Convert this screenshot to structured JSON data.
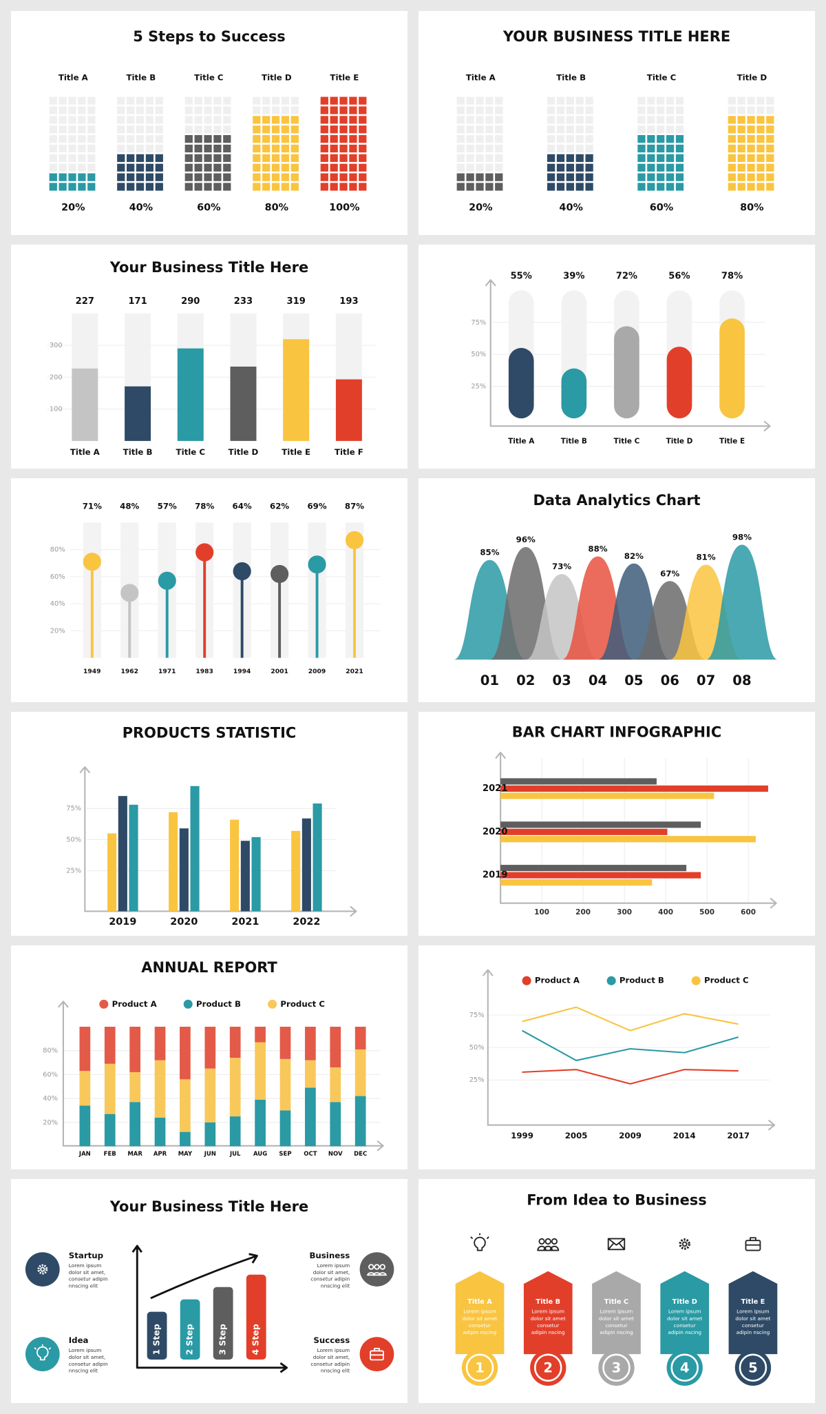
{
  "chart_data": [
    {
      "type": "waffle",
      "title": "5 Steps to Success",
      "categories": [
        "Title A",
        "Title B",
        "Title C",
        "Title D",
        "Title E"
      ],
      "values": [
        20,
        40,
        60,
        80,
        100
      ],
      "value_labels": [
        "20%",
        "40%",
        "60%",
        "80%",
        "100%"
      ],
      "colors": [
        "#2a9aa5",
        "#2e4a66",
        "#5e5e5e",
        "#f9c440",
        "#e23f2a"
      ],
      "ylim": [
        0,
        100
      ]
    },
    {
      "type": "waffle",
      "title": "YOUR BUSINESS TITLE HERE",
      "categories": [
        "Title A",
        "Title B",
        "Title C",
        "Title D"
      ],
      "values": [
        20,
        40,
        60,
        80
      ],
      "value_labels": [
        "20%",
        "40%",
        "60%",
        "80%"
      ],
      "colors": [
        "#5e5e5e",
        "#2e4a66",
        "#2a9aa5",
        "#f9c440"
      ],
      "ylim": [
        0,
        100
      ]
    },
    {
      "type": "bar",
      "title": "Your Business Title Here",
      "categories": [
        "Title A",
        "Title B",
        "Title C",
        "Title D",
        "Title E",
        "Title F"
      ],
      "values": [
        227,
        171,
        290,
        233,
        319,
        193
      ],
      "colors": [
        "#c4c4c4",
        "#2e4a66",
        "#2a9aa5",
        "#5e5e5e",
        "#f9c440",
        "#e23f2a"
      ],
      "ylim": [
        0,
        400
      ],
      "yticks": [
        100,
        200,
        300
      ],
      "grid": true
    },
    {
      "type": "pill",
      "categories": [
        "Title A",
        "Title B",
        "Title C",
        "Title D",
        "Title E"
      ],
      "values": [
        55,
        39,
        72,
        56,
        78
      ],
      "value_labels": [
        "55%",
        "39%",
        "72%",
        "56%",
        "78%"
      ],
      "colors": [
        "#2e4a66",
        "#2a9aa5",
        "#a9a9a9",
        "#e23f2a",
        "#f9c440"
      ],
      "ylim": [
        0,
        100
      ],
      "yticks": [
        {
          "value": 25,
          "label": "25%"
        },
        {
          "value": 50,
          "label": "50%"
        },
        {
          "value": 75,
          "label": "75%"
        }
      ],
      "grid": true
    },
    {
      "type": "lollipop",
      "categories": [
        "1949",
        "1962",
        "1971",
        "1983",
        "1994",
        "2001",
        "2009",
        "2021"
      ],
      "values": [
        71,
        48,
        57,
        78,
        64,
        62,
        69,
        87
      ],
      "value_labels": [
        "71%",
        "48%",
        "57%",
        "78%",
        "64%",
        "62%",
        "69%",
        "87%"
      ],
      "colors": [
        "#f9c440",
        "#c4c4c4",
        "#2a9aa5",
        "#e23f2a",
        "#2e4a66",
        "#5e5e5e",
        "#2a9aa5",
        "#f9c440"
      ],
      "ylim": [
        0,
        100
      ],
      "yticks": [
        {
          "value": 20,
          "label": "20%"
        },
        {
          "value": 40,
          "label": "40%"
        },
        {
          "value": 60,
          "label": "60%"
        },
        {
          "value": 80,
          "label": "80%"
        }
      ],
      "grid": true
    },
    {
      "type": "bell",
      "title": "Data Analytics Chart",
      "categories": [
        "01",
        "02",
        "03",
        "04",
        "05",
        "06",
        "07",
        "08"
      ],
      "values": [
        85,
        96,
        73,
        88,
        82,
        67,
        81,
        98
      ],
      "value_labels": [
        "85%",
        "96%",
        "73%",
        "88%",
        "82%",
        "67%",
        "81%",
        "98%"
      ],
      "colors": [
        "#2a9aa5",
        "#6b6b6b",
        "#c4c4c4",
        "#e8523f",
        "#3e5d7a",
        "#6b6b6b",
        "#f9c440",
        "#2a9aa5"
      ],
      "ylim": [
        0,
        100
      ]
    },
    {
      "type": "grouped-bar",
      "title": "PRODUCTS STATISTIC",
      "categories": [
        "2019",
        "2020",
        "2021",
        "2022"
      ],
      "series": [
        {
          "color": "#f9c440",
          "values": [
            55,
            72,
            66,
            57
          ]
        },
        {
          "color": "#2e4a66",
          "values": [
            85,
            59,
            49,
            67
          ]
        },
        {
          "color": "#2a9aa5",
          "values": [
            78,
            93,
            52,
            79
          ]
        }
      ],
      "ylim": [
        0,
        100
      ],
      "yticks": [
        {
          "value": 25,
          "label": "25%"
        },
        {
          "value": 50,
          "label": "50%"
        },
        {
          "value": 75,
          "label": "75%"
        }
      ],
      "grid": true
    },
    {
      "type": "horizontal-grouped-bar",
      "title": "BAR CHART INFOGRAPHIC",
      "categories": [
        "2021",
        "2020",
        "2019"
      ],
      "series": [
        {
          "color": "#5e5e5e",
          "values": [
            378,
            485,
            450
          ]
        },
        {
          "color": "#e23f2a",
          "values": [
            648,
            404,
            485
          ]
        },
        {
          "color": "#f9c440",
          "values": [
            517,
            618,
            367
          ]
        }
      ],
      "xlim": [
        0,
        660
      ],
      "xticks": [
        100,
        200,
        300,
        400,
        500,
        600
      ],
      "grid": true
    },
    {
      "type": "stacked-bar",
      "title": "ANNUAL REPORT",
      "categories": [
        "JAN",
        "FEB",
        "MAR",
        "APR",
        "MAY",
        "JUN",
        "JUL",
        "AUG",
        "SEP",
        "OCT",
        "NOV",
        "DEC"
      ],
      "series": [
        {
          "name": "Product A",
          "color": "#e45a48",
          "values": [
            37,
            31,
            38,
            28,
            44,
            35,
            26,
            13,
            27,
            28,
            34,
            19
          ]
        },
        {
          "name": "Product B",
          "color": "#2a9aa5",
          "values": [
            34,
            27,
            37,
            24,
            12,
            20,
            25,
            39,
            30,
            49,
            37,
            42
          ]
        },
        {
          "name": "Product C",
          "color": "#f9c85a",
          "values": [
            29,
            42,
            25,
            48,
            44,
            45,
            49,
            48,
            43,
            23,
            29,
            39
          ]
        }
      ],
      "stack_order": [
        1,
        2,
        0
      ],
      "ylim": [
        0,
        100
      ],
      "yticks": [
        {
          "value": 20,
          "label": "20%"
        },
        {
          "value": 40,
          "label": "40%"
        },
        {
          "value": 60,
          "label": "60%"
        },
        {
          "value": 80,
          "label": "80%"
        }
      ],
      "grid": true,
      "legend": "top"
    },
    {
      "type": "line",
      "categories": [
        "1999",
        "2005",
        "2009",
        "2014",
        "2017"
      ],
      "series": [
        {
          "name": "Product A",
          "color": "#e23f2a",
          "values": [
            31,
            33,
            22,
            33,
            32
          ]
        },
        {
          "name": "Product B",
          "color": "#2a9aa5",
          "values": [
            63,
            40,
            49,
            46,
            58
          ]
        },
        {
          "name": "Product C",
          "color": "#f9c440",
          "values": [
            70,
            81,
            63,
            76,
            68
          ]
        }
      ],
      "ylim": [
        0,
        100
      ],
      "yticks": [
        {
          "value": 25,
          "label": "25%"
        },
        {
          "value": 50,
          "label": "50%"
        },
        {
          "value": 75,
          "label": "75%"
        }
      ],
      "grid": true,
      "legend": "top"
    },
    {
      "type": "growth-steps",
      "title": "Your Business Title Here",
      "steps": [
        "1 Step",
        "2 Step",
        "3 Step",
        "4 Step"
      ],
      "step_colors": [
        "#2e4a66",
        "#2a9aa5",
        "#5e5e5e",
        "#e23f2a"
      ],
      "items": [
        {
          "title": "Startup",
          "color": "#2e4a66",
          "text": [
            "Lorem ipsum",
            "dolor sit amet,",
            "consetur adipin",
            "nnscing elit"
          ]
        },
        {
          "title": "Idea",
          "color": "#2a9aa5",
          "text": [
            "Lorem ipsum",
            "dolor sit amet,",
            "consetur adipin",
            "nnscing elit"
          ]
        },
        {
          "title": "Business",
          "color": "#5e5e5e",
          "text": [
            "Lorem ipsum",
            "dolor sit amet,",
            "consetur adipin",
            "nnscing elit"
          ]
        },
        {
          "title": "Success",
          "color": "#e23f2a",
          "text": [
            "Lorem ipsum",
            "dolor sit amet,",
            "consetur adipin",
            "nnscing elit"
          ]
        }
      ]
    },
    {
      "type": "process",
      "title": "From Idea to Business",
      "steps": [
        {
          "title": "Title A",
          "number": 1,
          "color": "#f9c440",
          "text": [
            "Lorem ipsum",
            "dolor sit amet",
            "consetur",
            "adipin nscing"
          ]
        },
        {
          "title": "Title B",
          "number": 2,
          "color": "#e23f2a",
          "text": [
            "Lorem ipsum",
            "dolor sit amet",
            "consetur",
            "adipin nscing"
          ]
        },
        {
          "title": "Title C",
          "number": 3,
          "color": "#a9a9a9",
          "text": [
            "Lorem ipsum",
            "dolor sit amet",
            "consetur",
            "adipin nscing"
          ]
        },
        {
          "title": "Title D",
          "number": 4,
          "color": "#2a9aa5",
          "text": [
            "Lorem ipsum",
            "dolor sit amet",
            "consetur",
            "adipin nscing"
          ]
        },
        {
          "title": "Title E",
          "number": 5,
          "color": "#2e4a66",
          "text": [
            "Lorem ipsum",
            "dolor sit amet",
            "consetur",
            "adipin nscing"
          ]
        }
      ]
    }
  ]
}
